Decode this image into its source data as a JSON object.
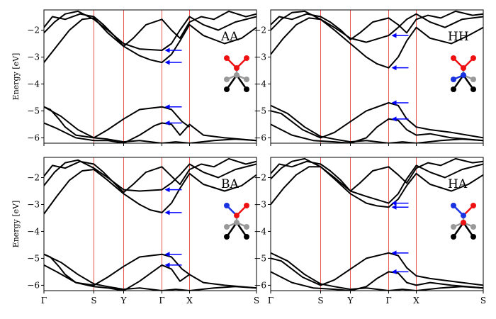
{
  "chart_data": [
    {
      "type": "line",
      "title": "AA",
      "ylabel": "Energy [eV]",
      "ylim": [
        -6.2,
        -1.25
      ],
      "yticks": [
        -2,
        -3,
        -4,
        -5,
        -6
      ],
      "kpoint_positions": [
        0,
        0.235,
        0.375,
        0.555,
        0.685,
        1.0
      ],
      "kpoint_labels": [
        "Γ",
        "S",
        "Y",
        "Γ",
        "X",
        "S"
      ],
      "arrows_at_gamma": [
        -2.75,
        -3.2,
        -4.85,
        -5.45
      ],
      "series": [
        {
          "x": [
            0,
            0.08,
            0.16,
            0.235,
            0.3,
            0.375,
            0.45,
            0.555,
            0.62,
            0.685,
            0.8,
            0.9,
            1.0
          ],
          "y": [
            -4.85,
            -5.2,
            -5.7,
            -6.0,
            -6.05,
            -6.15,
            -6.1,
            -6.2,
            -6.15,
            -6.2,
            -6.1,
            -6.05,
            -6.1
          ]
        },
        {
          "x": [
            0,
            0.06,
            0.15,
            0.235,
            0.3,
            0.375,
            0.45,
            0.52,
            0.555,
            0.6,
            0.64,
            0.685,
            0.75,
            0.85,
            1.0
          ],
          "y": [
            -5.45,
            -5.65,
            -6.0,
            -6.1,
            -6.1,
            -6.2,
            -5.9,
            -5.55,
            -5.45,
            -5.5,
            -5.9,
            -5.5,
            -5.9,
            -6.0,
            -6.1
          ]
        },
        {
          "x": [
            0,
            0.03,
            0.07,
            0.1,
            0.15,
            0.235,
            0.3,
            0.375,
            0.45,
            0.555,
            0.6,
            0.65,
            0.685
          ],
          "y": [
            -4.85,
            -4.95,
            -5.3,
            -5.6,
            -5.9,
            -6.0,
            -5.7,
            -5.3,
            -4.95,
            -4.85,
            -4.95,
            -5.4,
            -5.6
          ]
        },
        {
          "x": [
            0,
            0.06,
            0.12,
            0.18,
            0.235,
            0.3,
            0.375,
            0.45,
            0.5,
            0.555,
            0.6,
            0.64,
            0.685,
            0.75,
            0.85,
            0.93,
            1.0
          ],
          "y": [
            -3.2,
            -2.6,
            -2.0,
            -1.6,
            -1.55,
            -2.1,
            -2.6,
            -2.95,
            -3.1,
            -3.2,
            -2.9,
            -2.4,
            -1.8,
            -2.2,
            -2.5,
            -2.3,
            -1.9
          ]
        },
        {
          "x": [
            0,
            0.05,
            0.1,
            0.16,
            0.235,
            0.3,
            0.375,
            0.45,
            0.555,
            0.6,
            0.64,
            0.685,
            0.75,
            0.82,
            0.9,
            1.0
          ],
          "y": [
            -2.1,
            -1.7,
            -1.4,
            -1.3,
            -1.6,
            -2.0,
            -2.5,
            -2.7,
            -2.75,
            -2.5,
            -2.0,
            -1.5,
            -1.8,
            -2.0,
            -1.7,
            -1.5
          ]
        },
        {
          "x": [
            0,
            0.04,
            0.1,
            0.17,
            0.235,
            0.28,
            0.33,
            0.375,
            0.42,
            0.48,
            0.555,
            0.6,
            0.64,
            0.685,
            0.74,
            0.8,
            0.87,
            0.95,
            1.0
          ],
          "y": [
            -1.9,
            -1.5,
            -1.6,
            -1.4,
            -1.5,
            -1.8,
            -2.2,
            -2.6,
            -2.3,
            -1.8,
            -1.6,
            -2.0,
            -2.3,
            -1.7,
            -1.5,
            -1.6,
            -1.3,
            -1.5,
            -1.4
          ]
        }
      ]
    },
    {
      "type": "line",
      "title": "HH",
      "ylabel": "",
      "ylim": [
        -6.2,
        -1.25
      ],
      "yticks": [
        -2,
        -3,
        -4,
        -5,
        -6
      ],
      "kpoint_positions": [
        0,
        0.235,
        0.375,
        0.555,
        0.685,
        1.0
      ],
      "kpoint_labels": [
        "Γ",
        "S",
        "Y",
        "Γ",
        "X",
        "S"
      ],
      "arrows_at_gamma": [
        -2.2,
        -3.4,
        -4.7,
        -5.3
      ],
      "series": [
        {
          "x": [
            0,
            0.08,
            0.16,
            0.235,
            0.3,
            0.375,
            0.45,
            0.555,
            0.62,
            0.685,
            0.8,
            0.9,
            1.0
          ],
          "y": [
            -4.8,
            -5.1,
            -5.6,
            -5.95,
            -6.05,
            -6.15,
            -6.1,
            -6.2,
            -6.15,
            -6.2,
            -6.1,
            -6.05,
            -6.1
          ]
        },
        {
          "x": [
            0,
            0.1,
            0.2,
            0.3,
            0.375,
            0.45,
            0.5,
            0.555,
            0.6,
            0.64,
            0.685,
            0.75,
            0.85,
            1.0
          ],
          "y": [
            -5.5,
            -5.9,
            -6.1,
            -6.15,
            -6.2,
            -6.0,
            -5.6,
            -5.3,
            -5.35,
            -5.7,
            -5.9,
            -5.85,
            -6.0,
            -6.1
          ]
        },
        {
          "x": [
            0,
            0.05,
            0.1,
            0.15,
            0.235,
            0.3,
            0.375,
            0.45,
            0.555,
            0.6,
            0.64,
            0.685,
            0.75,
            0.85,
            1.0
          ],
          "y": [
            -5.0,
            -5.1,
            -5.4,
            -5.7,
            -6.0,
            -5.8,
            -5.4,
            -5.0,
            -4.7,
            -4.8,
            -5.3,
            -5.6,
            -5.7,
            -5.8,
            -6.0
          ]
        },
        {
          "x": [
            0,
            0.06,
            0.12,
            0.18,
            0.235,
            0.3,
            0.375,
            0.45,
            0.5,
            0.555,
            0.6,
            0.64,
            0.685,
            0.75,
            0.85,
            0.93,
            1.0
          ],
          "y": [
            -2.9,
            -2.3,
            -1.8,
            -1.55,
            -1.6,
            -2.0,
            -2.5,
            -3.0,
            -3.25,
            -3.4,
            -3.0,
            -2.4,
            -1.9,
            -2.3,
            -2.5,
            -2.2,
            -1.9
          ]
        },
        {
          "x": [
            0,
            0.05,
            0.1,
            0.16,
            0.235,
            0.3,
            0.375,
            0.45,
            0.555,
            0.6,
            0.64,
            0.685,
            0.75,
            0.82,
            0.9,
            1.0
          ],
          "y": [
            -2.0,
            -1.6,
            -1.35,
            -1.3,
            -1.6,
            -1.9,
            -2.3,
            -2.45,
            -2.2,
            -1.9,
            -1.6,
            -1.4,
            -1.7,
            -1.9,
            -1.6,
            -1.5
          ]
        },
        {
          "x": [
            0,
            0.04,
            0.1,
            0.17,
            0.235,
            0.28,
            0.33,
            0.375,
            0.42,
            0.48,
            0.555,
            0.6,
            0.64,
            0.685,
            0.74,
            0.8,
            0.87,
            0.95,
            1.0
          ],
          "y": [
            -1.8,
            -1.5,
            -1.6,
            -1.4,
            -1.5,
            -1.7,
            -2.0,
            -2.35,
            -2.1,
            -1.7,
            -1.55,
            -1.8,
            -2.1,
            -1.6,
            -1.45,
            -1.55,
            -1.3,
            -1.45,
            -1.4
          ]
        }
      ]
    },
    {
      "type": "line",
      "title": "BA",
      "ylabel": "Energy [eV]",
      "ylim": [
        -6.2,
        -1.25
      ],
      "yticks": [
        -2,
        -3,
        -4,
        -5,
        -6
      ],
      "kpoint_positions": [
        0,
        0.235,
        0.375,
        0.555,
        0.685,
        1.0
      ],
      "kpoint_labels": [
        "Γ",
        "S",
        "Y",
        "Γ",
        "X",
        "S"
      ],
      "arrows_at_gamma": [
        -2.45,
        -3.3,
        -4.85,
        -5.25
      ],
      "series": [
        {
          "x": [
            0,
            0.08,
            0.16,
            0.235,
            0.3,
            0.375,
            0.45,
            0.555,
            0.62,
            0.685,
            0.8,
            0.9,
            1.0
          ],
          "y": [
            -4.85,
            -5.15,
            -5.6,
            -5.95,
            -6.05,
            -6.15,
            -6.1,
            -6.2,
            -6.15,
            -6.2,
            -6.1,
            -6.05,
            -6.1
          ]
        },
        {
          "x": [
            0,
            0.06,
            0.15,
            0.235,
            0.3,
            0.375,
            0.45,
            0.52,
            0.555,
            0.6,
            0.64,
            0.685,
            0.75,
            0.85,
            1.0
          ],
          "y": [
            -5.25,
            -5.5,
            -5.9,
            -6.05,
            -6.1,
            -6.2,
            -5.85,
            -5.45,
            -5.25,
            -5.4,
            -5.85,
            -5.6,
            -5.9,
            -6.0,
            -6.1
          ]
        },
        {
          "x": [
            0,
            0.03,
            0.07,
            0.1,
            0.15,
            0.235,
            0.3,
            0.375,
            0.45,
            0.555,
            0.6,
            0.65,
            0.685
          ],
          "y": [
            -4.85,
            -4.95,
            -5.3,
            -5.6,
            -5.9,
            -6.0,
            -5.7,
            -5.3,
            -4.95,
            -4.85,
            -4.95,
            -5.4,
            -5.6
          ]
        },
        {
          "x": [
            0,
            0.06,
            0.12,
            0.18,
            0.235,
            0.3,
            0.375,
            0.45,
            0.5,
            0.555,
            0.6,
            0.64,
            0.685,
            0.75,
            0.85,
            0.93,
            1.0
          ],
          "y": [
            -3.35,
            -2.7,
            -2.1,
            -1.75,
            -1.7,
            -2.1,
            -2.6,
            -3.0,
            -3.2,
            -3.3,
            -2.95,
            -2.4,
            -1.85,
            -2.25,
            -2.5,
            -2.3,
            -1.9
          ]
        },
        {
          "x": [
            0,
            0.05,
            0.1,
            0.16,
            0.235,
            0.3,
            0.375,
            0.45,
            0.555,
            0.6,
            0.64,
            0.685,
            0.75,
            0.82,
            0.9,
            1.0
          ],
          "y": [
            -2.3,
            -1.8,
            -1.45,
            -1.35,
            -1.65,
            -2.0,
            -2.45,
            -2.5,
            -2.45,
            -2.2,
            -1.9,
            -1.5,
            -1.8,
            -2.0,
            -1.7,
            -1.5
          ]
        },
        {
          "x": [
            0,
            0.04,
            0.1,
            0.17,
            0.235,
            0.28,
            0.33,
            0.375,
            0.42,
            0.48,
            0.555,
            0.6,
            0.64,
            0.685,
            0.74,
            0.8,
            0.87,
            0.95,
            1.0
          ],
          "y": [
            -1.95,
            -1.55,
            -1.65,
            -1.4,
            -1.5,
            -1.8,
            -2.2,
            -2.55,
            -2.25,
            -1.8,
            -1.6,
            -1.95,
            -2.25,
            -1.7,
            -1.5,
            -1.6,
            -1.3,
            -1.5,
            -1.4
          ]
        }
      ]
    },
    {
      "type": "line",
      "title": "HA",
      "ylabel": "",
      "ylim": [
        -6.2,
        -1.25
      ],
      "yticks": [
        -2,
        -3,
        -4,
        -5,
        -6
      ],
      "kpoint_positions": [
        0,
        0.235,
        0.375,
        0.555,
        0.685,
        1.0
      ],
      "kpoint_labels": [
        "Γ",
        "S",
        "Y",
        "Γ",
        "X",
        "S"
      ],
      "arrows_at_gamma": [
        -2.95,
        -3.1,
        -4.8,
        -5.5
      ],
      "series": [
        {
          "x": [
            0,
            0.08,
            0.16,
            0.235,
            0.3,
            0.375,
            0.45,
            0.555,
            0.62,
            0.685,
            0.8,
            0.9,
            1.0
          ],
          "y": [
            -4.8,
            -5.1,
            -5.6,
            -5.95,
            -6.05,
            -6.15,
            -6.1,
            -6.2,
            -6.15,
            -6.2,
            -6.1,
            -6.05,
            -6.1
          ]
        },
        {
          "x": [
            0,
            0.1,
            0.2,
            0.3,
            0.375,
            0.45,
            0.5,
            0.555,
            0.6,
            0.64,
            0.685,
            0.75,
            0.85,
            1.0
          ],
          "y": [
            -5.5,
            -5.9,
            -6.1,
            -6.15,
            -6.2,
            -6.05,
            -5.75,
            -5.5,
            -5.55,
            -5.9,
            -6.0,
            -5.9,
            -6.0,
            -6.1
          ]
        },
        {
          "x": [
            0,
            0.05,
            0.1,
            0.15,
            0.235,
            0.3,
            0.375,
            0.45,
            0.555,
            0.6,
            0.64,
            0.685,
            0.75,
            0.85,
            1.0
          ],
          "y": [
            -5.0,
            -5.1,
            -5.4,
            -5.7,
            -6.0,
            -5.8,
            -5.4,
            -5.0,
            -4.8,
            -4.9,
            -5.35,
            -5.65,
            -5.75,
            -5.85,
            -6.0
          ]
        },
        {
          "x": [
            0,
            0.06,
            0.12,
            0.18,
            0.235,
            0.3,
            0.375,
            0.45,
            0.5,
            0.555,
            0.6,
            0.64,
            0.685,
            0.75,
            0.85,
            0.93,
            1.0
          ],
          "y": [
            -3.0,
            -2.4,
            -1.9,
            -1.6,
            -1.6,
            -2.05,
            -2.6,
            -2.95,
            -3.05,
            -3.1,
            -2.8,
            -2.3,
            -1.85,
            -2.25,
            -2.5,
            -2.25,
            -1.9
          ]
        },
        {
          "x": [
            0,
            0.05,
            0.1,
            0.16,
            0.235,
            0.3,
            0.375,
            0.45,
            0.555,
            0.6,
            0.64,
            0.685,
            0.75,
            0.82,
            0.9,
            1.0
          ],
          "y": [
            -2.05,
            -1.65,
            -1.4,
            -1.3,
            -1.6,
            -2.0,
            -2.5,
            -2.7,
            -2.95,
            -2.6,
            -2.05,
            -1.55,
            -1.8,
            -2.0,
            -1.7,
            -1.5
          ]
        },
        {
          "x": [
            0,
            0.04,
            0.1,
            0.17,
            0.235,
            0.28,
            0.33,
            0.375,
            0.42,
            0.48,
            0.555,
            0.6,
            0.64,
            0.685,
            0.74,
            0.8,
            0.87,
            0.95,
            1.0
          ],
          "y": [
            -1.85,
            -1.5,
            -1.6,
            -1.4,
            -1.5,
            -1.75,
            -2.1,
            -2.5,
            -2.2,
            -1.75,
            -1.6,
            -1.9,
            -2.2,
            -1.65,
            -1.45,
            -1.55,
            -1.3,
            -1.45,
            -1.4
          ]
        }
      ]
    }
  ],
  "colors": {
    "bands": "#000000",
    "kpath_lines": "#e8554a",
    "arrows": "#0000ff",
    "atom_top": "#ee1111",
    "atom_top_alt": "#1a33e0",
    "atom_bottom": "#000000",
    "atom_bottom_alt": "#999999"
  }
}
